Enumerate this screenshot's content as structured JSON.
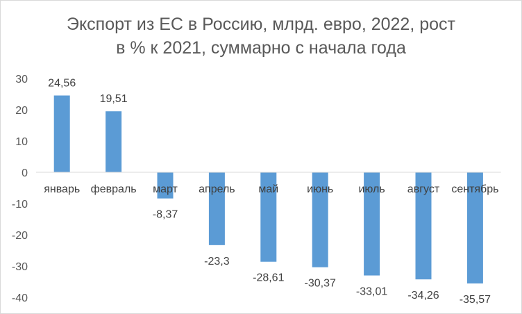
{
  "chart_data": {
    "type": "bar",
    "title_line1": "Экспорт из ЕС в Россию, млрд. евро, 2022, рост",
    "title_line2": "в % к 2021, суммарно с начала года",
    "categories": [
      "январь",
      "февраль",
      "март",
      "апрель",
      "май",
      "июнь",
      "июль",
      "август",
      "сентябрь"
    ],
    "values": [
      24.56,
      19.51,
      -8.37,
      -23.3,
      -28.61,
      -30.37,
      -33.01,
      -34.26,
      -35.57
    ],
    "value_labels": [
      "24,56",
      "19,51",
      "-8,37",
      "-23,3",
      "-28,61",
      "-30,37",
      "-33,01",
      "-34,26",
      "-35,57"
    ],
    "y_ticks": [
      30,
      20,
      10,
      0,
      -10,
      -20,
      -30,
      -40
    ],
    "ylim": [
      -40,
      30
    ],
    "grid": false,
    "legend": "none",
    "bar_color": "#5b9bd5"
  }
}
